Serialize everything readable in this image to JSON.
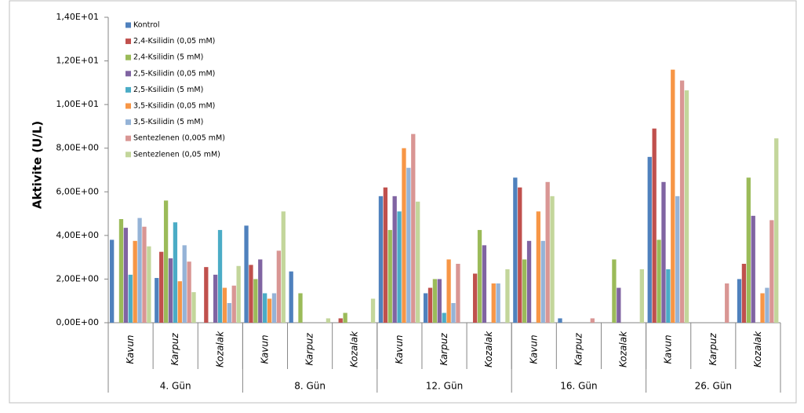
{
  "chart_data": {
    "type": "bar",
    "ylabel": "Aktivite (U/L)",
    "categories": [
      "Kavun",
      "Karpuz",
      "Kozalak",
      "Kavun",
      "Karpuz",
      "Kozalak",
      "Kavun",
      "Karpuz",
      "Kozalak",
      "Kavun",
      "Karpuz",
      "Kozalak",
      "Kavun",
      "Karpuz",
      "Kozalak"
    ],
    "groups": [
      "4. Gün",
      "8. Gün",
      "12. Gün",
      "16. Gün",
      "26. Gün"
    ],
    "ylim": [
      0,
      14
    ],
    "yticks": [
      {
        "value": 0,
        "label": "0,00E+00"
      },
      {
        "value": 2,
        "label": "2,00E+00"
      },
      {
        "value": 4,
        "label": "4,00E+00"
      },
      {
        "value": 6,
        "label": "6,00E+00"
      },
      {
        "value": 8,
        "label": "8,00E+00"
      },
      {
        "value": 10,
        "label": "1,00E+01"
      },
      {
        "value": 12,
        "label": "1,20E+01"
      },
      {
        "value": 14,
        "label": "1,40E+01"
      }
    ],
    "legend": "top-left",
    "series": [
      {
        "name": "Kontrol",
        "color": "#4f81bd",
        "values": [
          3.8,
          2.05,
          0,
          4.45,
          2.35,
          0,
          5.8,
          1.35,
          0,
          6.65,
          0.2,
          0,
          7.6,
          0,
          2.0
        ]
      },
      {
        "name": "2,4-Ksilidin (0,05 mM)",
        "color": "#c0504d",
        "values": [
          0,
          3.25,
          2.55,
          2.65,
          0,
          0.2,
          6.2,
          1.6,
          2.25,
          6.2,
          0,
          0,
          8.9,
          0,
          2.7
        ]
      },
      {
        "name": "2,4-Ksilidin (5 mM)",
        "color": "#9bbb59",
        "values": [
          4.75,
          5.6,
          0,
          2.0,
          1.35,
          0.45,
          4.25,
          2.0,
          4.25,
          2.9,
          0,
          2.9,
          3.8,
          0,
          6.65
        ]
      },
      {
        "name": "2,5-Ksilidin (0,05 mM)",
        "color": "#8064a2",
        "values": [
          4.35,
          2.95,
          2.2,
          2.9,
          0,
          0,
          5.8,
          2.0,
          3.55,
          3.75,
          0,
          1.6,
          6.45,
          0,
          4.9
        ]
      },
      {
        "name": "2,5-Ksilidin (5 mM)",
        "color": "#4bacc6",
        "values": [
          2.2,
          4.6,
          4.25,
          1.35,
          0,
          0,
          5.1,
          0.45,
          0,
          0,
          0,
          0,
          2.45,
          0,
          0
        ]
      },
      {
        "name": "3,5-Ksilidin (0,05 mM)",
        "color": "#f79646",
        "values": [
          3.75,
          1.9,
          1.6,
          1.1,
          0,
          0,
          8.0,
          2.9,
          1.8,
          5.1,
          0,
          0,
          11.6,
          0,
          1.35
        ]
      },
      {
        "name": "3,5-Ksilidin (5 mM)",
        "color": "#95b3d7",
        "values": [
          4.8,
          3.55,
          0.9,
          1.35,
          0,
          0,
          7.1,
          0.9,
          1.8,
          3.75,
          0,
          0,
          5.8,
          0,
          1.6
        ]
      },
      {
        "name": "Sentezlenen (0,005 mM)",
        "color": "#d99694",
        "values": [
          4.4,
          2.8,
          1.7,
          3.3,
          0,
          0,
          8.65,
          2.7,
          0,
          6.45,
          0.2,
          0,
          11.1,
          1.8,
          4.7
        ]
      },
      {
        "name": "Sentezlenen (0,05 mM)",
        "color": "#c3d69b",
        "values": [
          3.5,
          1.4,
          2.6,
          5.1,
          0.2,
          1.1,
          5.55,
          0,
          2.45,
          5.8,
          0,
          2.45,
          10.65,
          0,
          8.45
        ]
      }
    ]
  }
}
